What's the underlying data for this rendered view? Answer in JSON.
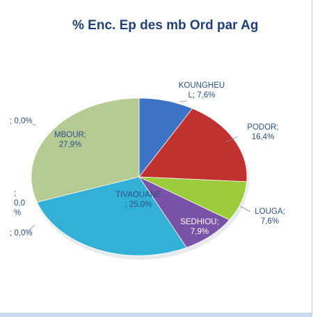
{
  "chart_data": {
    "type": "pie",
    "title": "% Enc. Ep des mb Ord par Ag",
    "slices": [
      {
        "name": "KOUNGHEUL",
        "value": 7.6,
        "color": "#3d73c4",
        "label_lines": [
          "KOUNGHEU",
          "L; 7,6%"
        ],
        "label_color": "#2a4f86"
      },
      {
        "name": "PODOR",
        "value": 16.4,
        "color": "#c0312f",
        "label_lines": [
          "PODOR;",
          "16,4%"
        ],
        "label_color": "#2a4f86"
      },
      {
        "name": "LOUGA",
        "value": 7.6,
        "color": "#9ccc3c",
        "label_lines": [
          "LOUGA;",
          "7,6%"
        ],
        "label_color": "#2a4f86"
      },
      {
        "name": "SEDHIOU",
        "value": 7.9,
        "color": "#7a52a8",
        "label_lines": [
          "SEDHIOU;",
          "7,9%"
        ],
        "label_color": "#ffffff"
      },
      {
        "name": "TIVAOUANE",
        "value": 25.0,
        "color": "#33b0d6",
        "label_lines": [
          "TIVAOUANE",
          "; 25,0%"
        ],
        "label_color": "#2a4f86"
      },
      {
        "name": "",
        "value": 0.0,
        "color": "#e07b2c",
        "label_lines": [
          "; 0,0%"
        ],
        "label_color": "#2a4f86"
      },
      {
        "name": "",
        "value": 0.0,
        "color": "#e07b2c",
        "label_lines": [
          ";",
          "0,0",
          "%"
        ],
        "label_color": "#2a4f86"
      },
      {
        "name": "MBOUR",
        "value": 27.9,
        "color": "#b6cb94",
        "label_lines": [
          "MBOUR;",
          "27,9%"
        ],
        "label_color": "#2a4f86"
      },
      {
        "name": "",
        "value": 0.0,
        "color": "#e07b2c",
        "label_lines": [
          "; 0,0%"
        ],
        "label_color": "#2a4f86"
      }
    ]
  }
}
